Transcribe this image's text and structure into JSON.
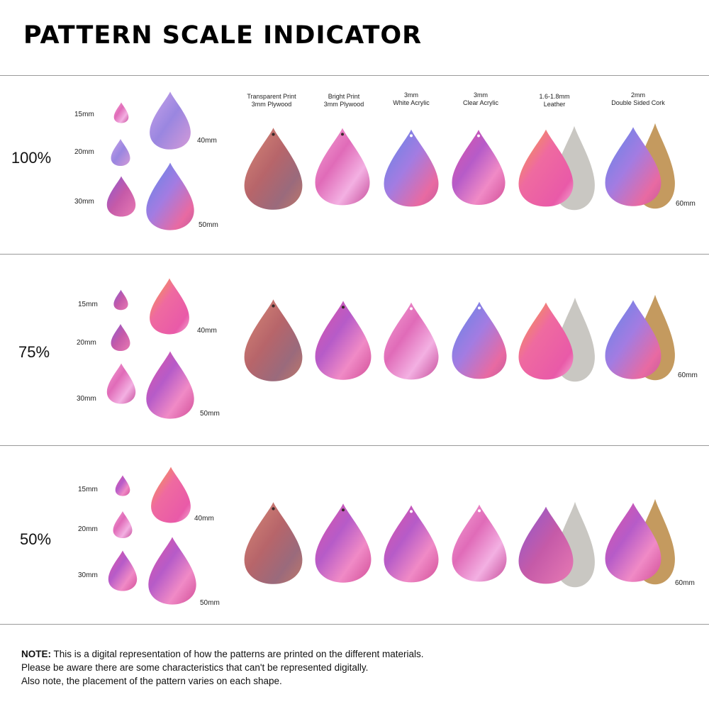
{
  "title": "PATTERN SCALE INDICATOR",
  "materials": [
    {
      "line1": "Transparent Print",
      "line2": "3mm Plywood"
    },
    {
      "line1": "Bright Print",
      "line2": "3mm Plywood"
    },
    {
      "line1": "3mm",
      "line2": "White Acrylic"
    },
    {
      "line1": "3mm",
      "line2": "Clear Acrylic"
    },
    {
      "line1": "1.6-1.8mm",
      "line2": "Leather"
    },
    {
      "line1": "2mm",
      "line2": "Double Sided Cork"
    }
  ],
  "sections": [
    {
      "scale": "100%",
      "sizes": {
        "s15": "15mm",
        "s20": "20mm",
        "s30": "30mm",
        "s40": "40mm",
        "s50": "50mm",
        "s60": "60mm"
      }
    },
    {
      "scale": "75%",
      "sizes": {
        "s15": "15mm",
        "s20": "20mm",
        "s30": "30mm",
        "s40": "40mm",
        "s50": "50mm",
        "s60": "60mm"
      }
    },
    {
      "scale": "50%",
      "sizes": {
        "s15": "15mm",
        "s20": "20mm",
        "s30": "30mm",
        "s40": "40mm",
        "s50": "50mm",
        "s60": "60mm"
      }
    }
  ],
  "note": {
    "label": "NOTE:",
    "line1": " This is a digital representation of how the patterns are printed on the different materials.",
    "line2": "Please be aware there are some characteristics that can't be represented digitally.",
    "line3": "Also note, the placement of the pattern varies on each shape."
  }
}
